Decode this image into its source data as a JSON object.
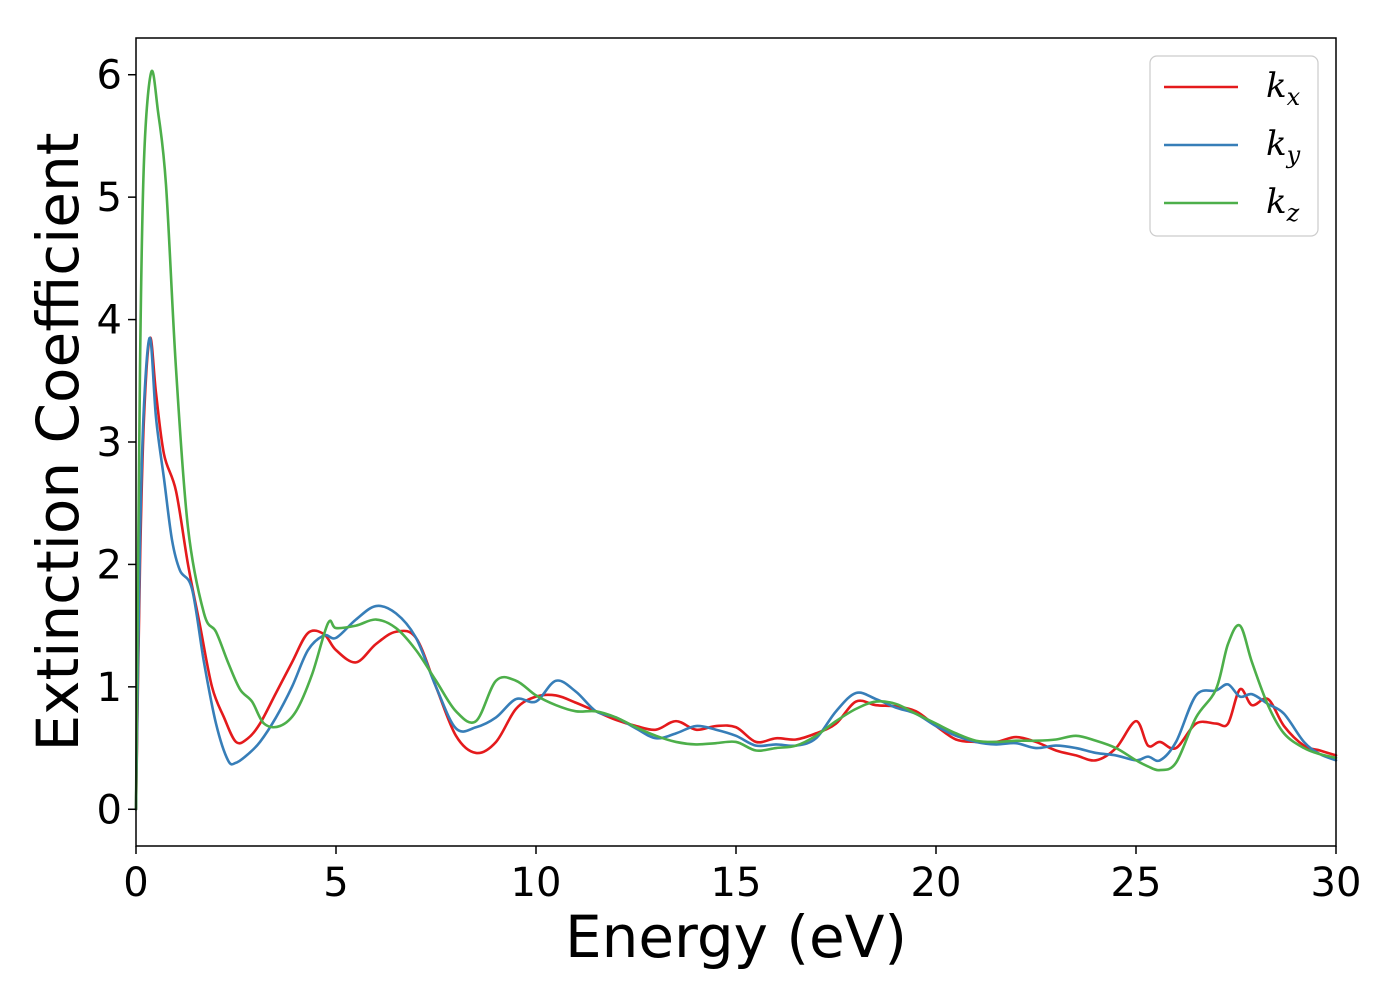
{
  "chart_data": {
    "type": "line",
    "title": "",
    "xlabel": "Energy (eV)",
    "ylabel": "Extinction Coefficient",
    "xlim": [
      0,
      30
    ],
    "ylim": [
      -0.3,
      6.3
    ],
    "xticks": [
      0,
      5,
      10,
      15,
      20,
      25,
      30
    ],
    "yticks": [
      0,
      1,
      2,
      3,
      4,
      5,
      6
    ],
    "grid": false,
    "legend_position": "top-right",
    "series": [
      {
        "name": "k",
        "sub": "x",
        "color": "#e41a1c",
        "x": [
          0,
          0.1,
          0.2,
          0.35,
          0.5,
          0.7,
          1.0,
          1.3,
          1.6,
          1.9,
          2.2,
          2.5,
          2.8,
          3.1,
          3.5,
          3.9,
          4.3,
          4.7,
          5.0,
          5.5,
          6.0,
          6.5,
          7.0,
          7.5,
          8.0,
          8.5,
          9.0,
          9.5,
          10.0,
          10.5,
          11.0,
          11.5,
          12.0,
          12.5,
          13.0,
          13.5,
          14.0,
          14.5,
          15.0,
          15.5,
          16.0,
          16.5,
          17.0,
          17.5,
          18.0,
          18.5,
          19.0,
          19.5,
          20.0,
          20.5,
          21.0,
          21.5,
          22.0,
          22.5,
          23.0,
          23.5,
          24.0,
          24.5,
          25.0,
          25.3,
          25.6,
          26.0,
          26.5,
          27.0,
          27.3,
          27.6,
          27.9,
          28.3,
          28.7,
          29.2,
          29.6,
          30.0
        ],
        "y": [
          0,
          2.0,
          3.2,
          3.85,
          3.4,
          2.9,
          2.6,
          2.0,
          1.5,
          1.0,
          0.75,
          0.55,
          0.58,
          0.7,
          0.95,
          1.2,
          1.44,
          1.43,
          1.3,
          1.2,
          1.35,
          1.45,
          1.4,
          1.0,
          0.6,
          0.46,
          0.55,
          0.82,
          0.92,
          0.93,
          0.87,
          0.8,
          0.73,
          0.68,
          0.65,
          0.72,
          0.65,
          0.68,
          0.67,
          0.55,
          0.58,
          0.57,
          0.62,
          0.7,
          0.88,
          0.85,
          0.84,
          0.8,
          0.68,
          0.57,
          0.55,
          0.55,
          0.59,
          0.55,
          0.48,
          0.44,
          0.4,
          0.5,
          0.72,
          0.52,
          0.55,
          0.5,
          0.7,
          0.7,
          0.7,
          0.98,
          0.85,
          0.9,
          0.68,
          0.52,
          0.48,
          0.44
        ]
      },
      {
        "name": "k",
        "sub": "y",
        "color": "#377eb8",
        "x": [
          0,
          0.1,
          0.2,
          0.35,
          0.5,
          0.7,
          0.9,
          1.1,
          1.4,
          1.7,
          2.0,
          2.3,
          2.5,
          2.8,
          3.1,
          3.5,
          3.9,
          4.3,
          4.7,
          5.0,
          5.5,
          6.0,
          6.5,
          7.0,
          7.5,
          8.0,
          8.5,
          9.0,
          9.5,
          10.0,
          10.5,
          11.0,
          11.5,
          12.0,
          12.5,
          13.0,
          13.5,
          14.0,
          14.5,
          15.0,
          15.5,
          16.0,
          16.5,
          17.0,
          17.5,
          18.0,
          18.5,
          19.0,
          19.5,
          20.0,
          20.5,
          21.0,
          21.5,
          22.0,
          22.5,
          23.0,
          23.5,
          24.0,
          24.5,
          25.0,
          25.3,
          25.6,
          26.0,
          26.5,
          27.0,
          27.3,
          27.6,
          27.9,
          28.3,
          28.7,
          29.2,
          29.6,
          30.0
        ],
        "y": [
          0,
          2.2,
          3.3,
          3.85,
          3.2,
          2.7,
          2.2,
          1.95,
          1.8,
          1.2,
          0.7,
          0.4,
          0.38,
          0.45,
          0.55,
          0.75,
          1.0,
          1.3,
          1.42,
          1.4,
          1.55,
          1.66,
          1.6,
          1.4,
          1.0,
          0.66,
          0.67,
          0.75,
          0.9,
          0.88,
          1.05,
          0.96,
          0.8,
          0.75,
          0.66,
          0.58,
          0.62,
          0.68,
          0.65,
          0.6,
          0.52,
          0.53,
          0.52,
          0.58,
          0.8,
          0.95,
          0.9,
          0.83,
          0.78,
          0.68,
          0.6,
          0.55,
          0.53,
          0.54,
          0.5,
          0.52,
          0.5,
          0.46,
          0.44,
          0.4,
          0.43,
          0.4,
          0.55,
          0.93,
          0.97,
          1.02,
          0.92,
          0.94,
          0.86,
          0.78,
          0.55,
          0.45,
          0.4
        ]
      },
      {
        "name": "k",
        "sub": "z",
        "color": "#4daf4a",
        "x": [
          0,
          0.1,
          0.2,
          0.38,
          0.55,
          0.75,
          1.0,
          1.3,
          1.7,
          2.0,
          2.3,
          2.6,
          2.9,
          3.2,
          3.6,
          4.0,
          4.4,
          4.8,
          5.0,
          5.5,
          6.0,
          6.5,
          7.0,
          7.5,
          8.0,
          8.5,
          9.0,
          9.5,
          10.0,
          10.5,
          11.0,
          11.5,
          12.0,
          12.5,
          13.0,
          13.5,
          14.0,
          14.5,
          15.0,
          15.5,
          16.0,
          16.5,
          17.0,
          17.5,
          18.0,
          18.5,
          19.0,
          19.5,
          20.0,
          20.5,
          21.0,
          21.5,
          22.0,
          22.5,
          23.0,
          23.5,
          24.0,
          24.5,
          25.0,
          25.3,
          25.6,
          26.0,
          26.5,
          27.0,
          27.3,
          27.6,
          27.9,
          28.3,
          28.7,
          29.2,
          29.6,
          30.0
        ],
        "y": [
          0,
          3.6,
          5.3,
          6.02,
          5.7,
          5.1,
          3.6,
          2.3,
          1.6,
          1.45,
          1.2,
          0.98,
          0.88,
          0.7,
          0.68,
          0.8,
          1.1,
          1.52,
          1.48,
          1.5,
          1.55,
          1.48,
          1.3,
          1.05,
          0.8,
          0.72,
          1.05,
          1.05,
          0.93,
          0.85,
          0.8,
          0.8,
          0.75,
          0.67,
          0.6,
          0.55,
          0.53,
          0.54,
          0.55,
          0.48,
          0.5,
          0.52,
          0.6,
          0.72,
          0.82,
          0.88,
          0.86,
          0.78,
          0.7,
          0.62,
          0.56,
          0.55,
          0.56,
          0.56,
          0.57,
          0.6,
          0.56,
          0.5,
          0.4,
          0.35,
          0.32,
          0.38,
          0.75,
          0.98,
          1.35,
          1.5,
          1.2,
          0.85,
          0.62,
          0.5,
          0.45,
          0.42
        ]
      }
    ]
  }
}
